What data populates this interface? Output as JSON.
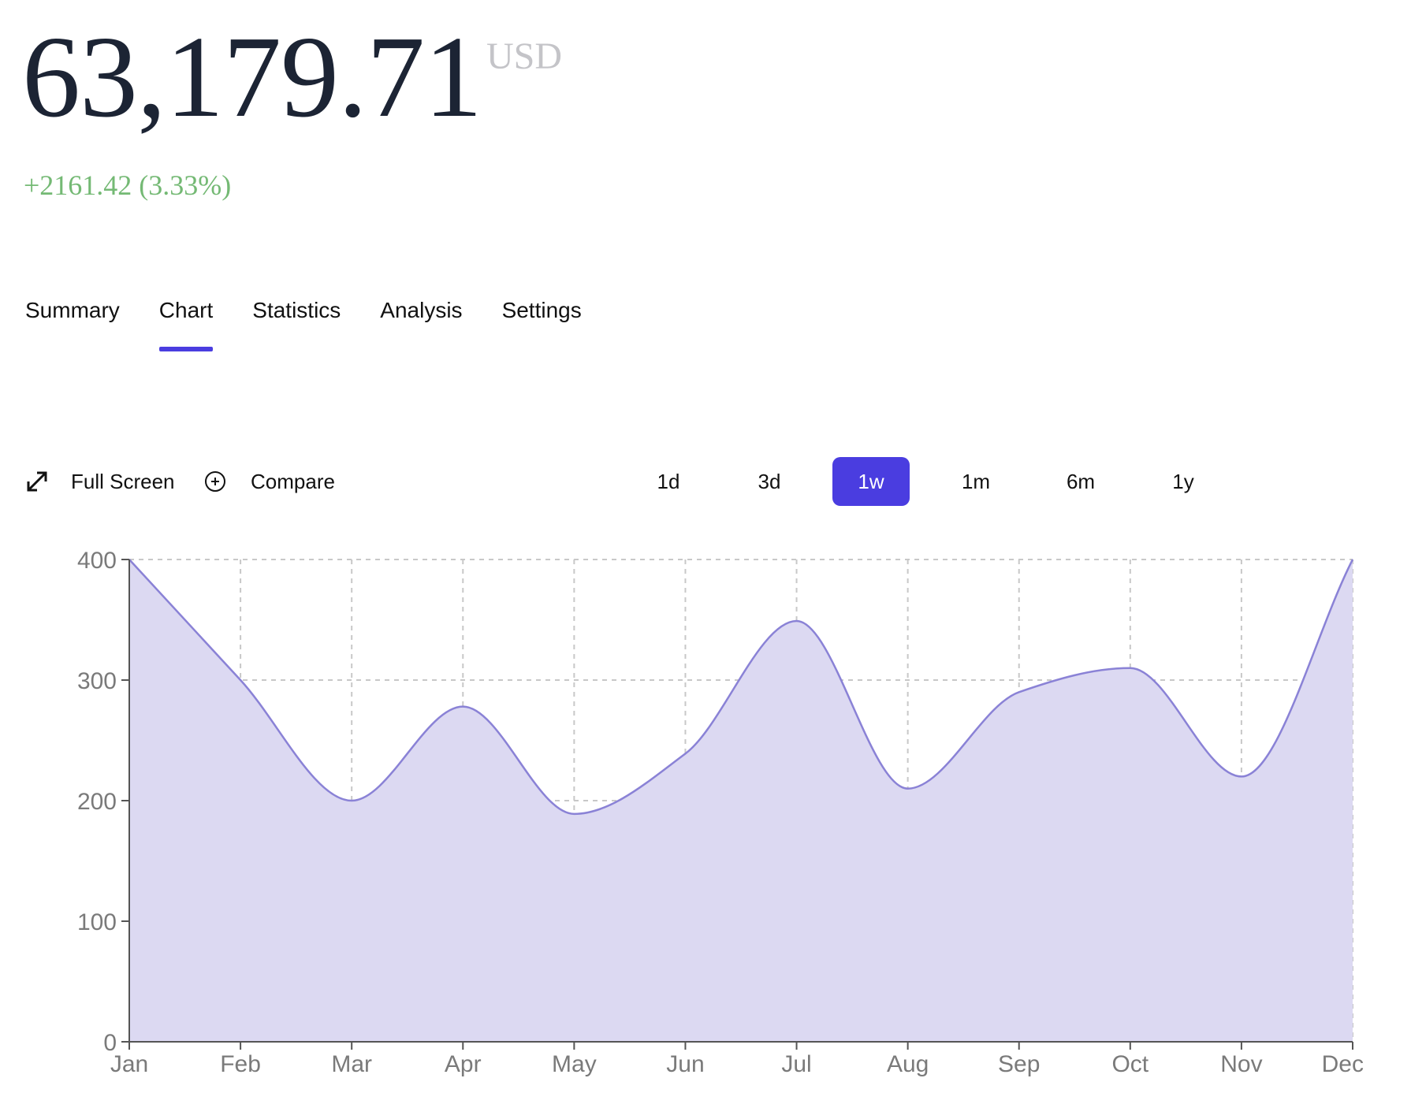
{
  "header": {
    "price": "63,179.71",
    "currency": "USD",
    "change": "+2161.42 (3.33%)"
  },
  "tabs": [
    {
      "label": "Summary",
      "active": false
    },
    {
      "label": "Chart",
      "active": true
    },
    {
      "label": "Statistics",
      "active": false
    },
    {
      "label": "Analysis",
      "active": false
    },
    {
      "label": "Settings",
      "active": false
    }
  ],
  "toolbar": {
    "fullscreen_label": "Full Screen",
    "fullscreen_icon": "expand-arrows-icon",
    "compare_label": "Compare",
    "compare_icon": "plus-circle-icon",
    "ranges": [
      {
        "label": "1d",
        "active": false
      },
      {
        "label": "3d",
        "active": false
      },
      {
        "label": "1w",
        "active": true
      },
      {
        "label": "1m",
        "active": false
      },
      {
        "label": "6m",
        "active": false
      },
      {
        "label": "1y",
        "active": false
      }
    ]
  },
  "colors": {
    "accent": "#4a3de0",
    "positive": "#74b974",
    "area_fill": "#dcd9f2",
    "area_stroke": "#8a82d6",
    "grid": "#c8c8c8",
    "axis": "#555555"
  },
  "chart_data": {
    "type": "area",
    "categories": [
      "Jan",
      "Feb",
      "Mar",
      "Apr",
      "May",
      "Jun",
      "Jul",
      "Aug",
      "Sep",
      "Oct",
      "Nov",
      "Dec"
    ],
    "values": [
      400,
      300,
      200,
      278,
      189,
      239,
      349,
      210,
      290,
      310,
      220,
      400
    ],
    "yticks": [
      0,
      100,
      200,
      300,
      400
    ],
    "ylim": [
      0,
      400
    ],
    "grid": true,
    "curve": "smooth"
  }
}
